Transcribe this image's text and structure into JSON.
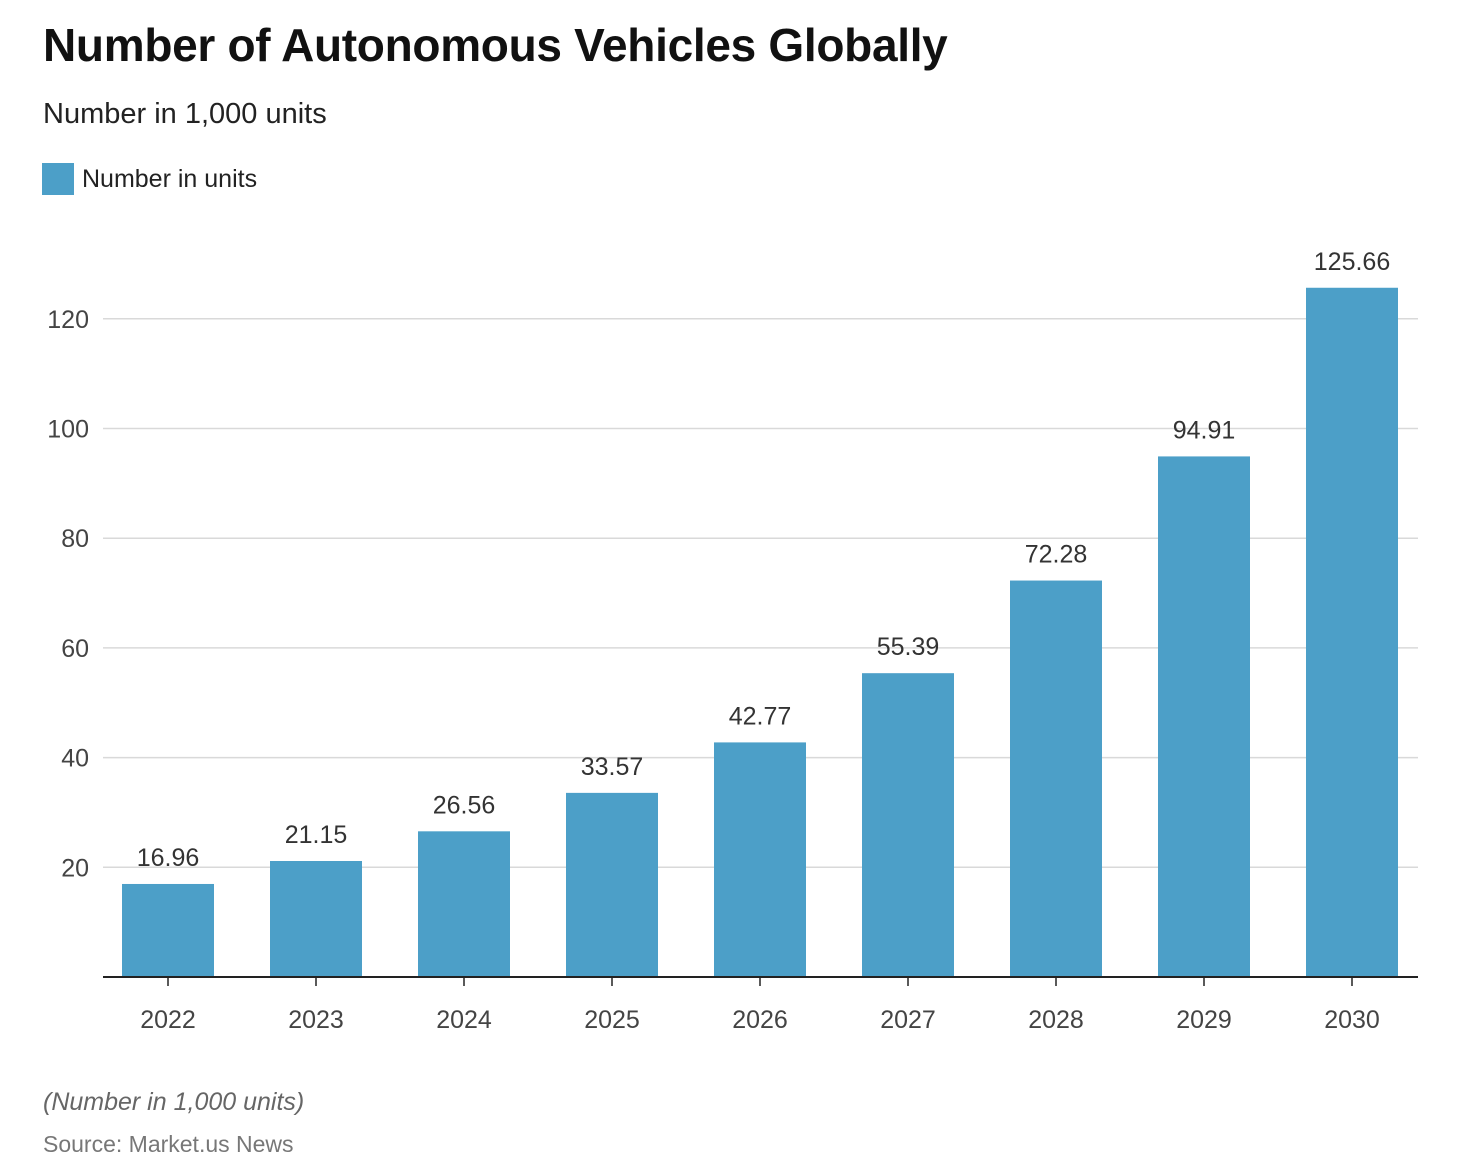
{
  "colors": {
    "bar": "#4c9fc8",
    "grid": "#d9d9d9",
    "axis": "#222222"
  },
  "chart_data": {
    "type": "bar",
    "title": "Number of Autonomous Vehicles Globally",
    "subtitle": "Number in 1,000 units",
    "legend": [
      "Number in units"
    ],
    "legend_position": "top-left",
    "categories": [
      "2022",
      "2023",
      "2024",
      "2025",
      "2026",
      "2027",
      "2028",
      "2029",
      "2030"
    ],
    "series": [
      {
        "name": "Number in units",
        "values": [
          16.96,
          21.15,
          26.56,
          33.57,
          42.77,
          55.39,
          72.28,
          94.91,
          125.66
        ]
      }
    ],
    "data_labels": [
      "16.96",
      "21.15",
      "26.56",
      "33.57",
      "42.77",
      "55.39",
      "72.28",
      "94.91",
      "125.66"
    ],
    "y_ticks": [
      20,
      40,
      60,
      80,
      100,
      120
    ],
    "ylim": [
      0,
      130
    ],
    "grid": true,
    "xlabel": "",
    "ylabel": ""
  },
  "footer": {
    "note": "(Number in 1,000 units)",
    "source": "Source: Market.us News"
  }
}
